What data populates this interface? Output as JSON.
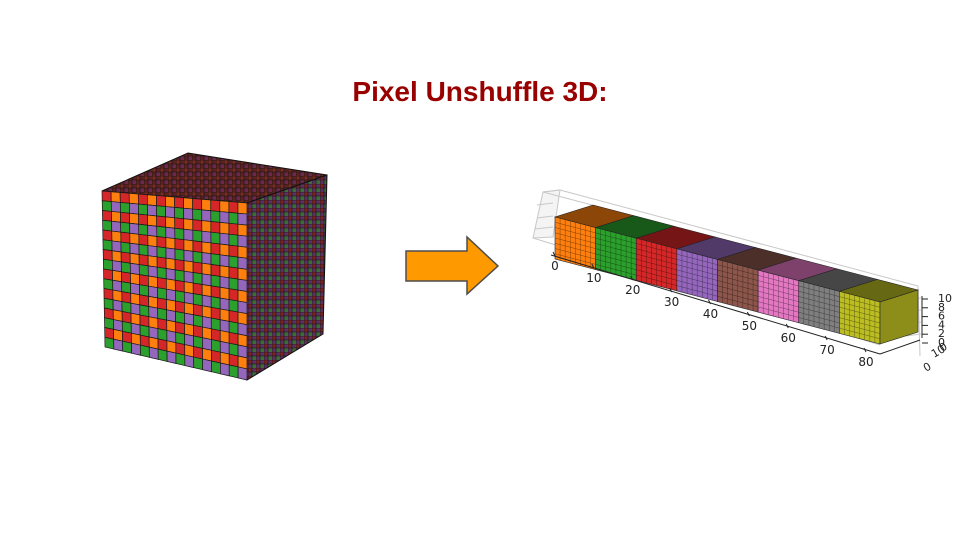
{
  "slide": {
    "title": "Pixel Unshuffle 3D:",
    "title_color": "#990000"
  },
  "input_cube": {
    "grid_size": 16,
    "cell_colors": [
      "#d62728",
      "#ff7f0e",
      "#2ca02c",
      "#9467bd"
    ],
    "grid_line_color": "#1a1a1a"
  },
  "arrow": {
    "fill": "#ff9900",
    "stroke": "#4d4d4d"
  },
  "output_plot": {
    "block_colors": [
      "#ff7f0e",
      "#2ca02c",
      "#d62728",
      "#9467bd",
      "#8c564b",
      "#e377c2",
      "#7f7f7f",
      "#bcbd22"
    ],
    "x_ticks": [
      "0",
      "10",
      "20",
      "30",
      "40",
      "50",
      "60",
      "70",
      "80"
    ],
    "y_ticks": [
      "0",
      "10",
      "0"
    ],
    "z_ticks": [
      "0",
      "2",
      "4",
      "6",
      "8",
      "10"
    ]
  }
}
